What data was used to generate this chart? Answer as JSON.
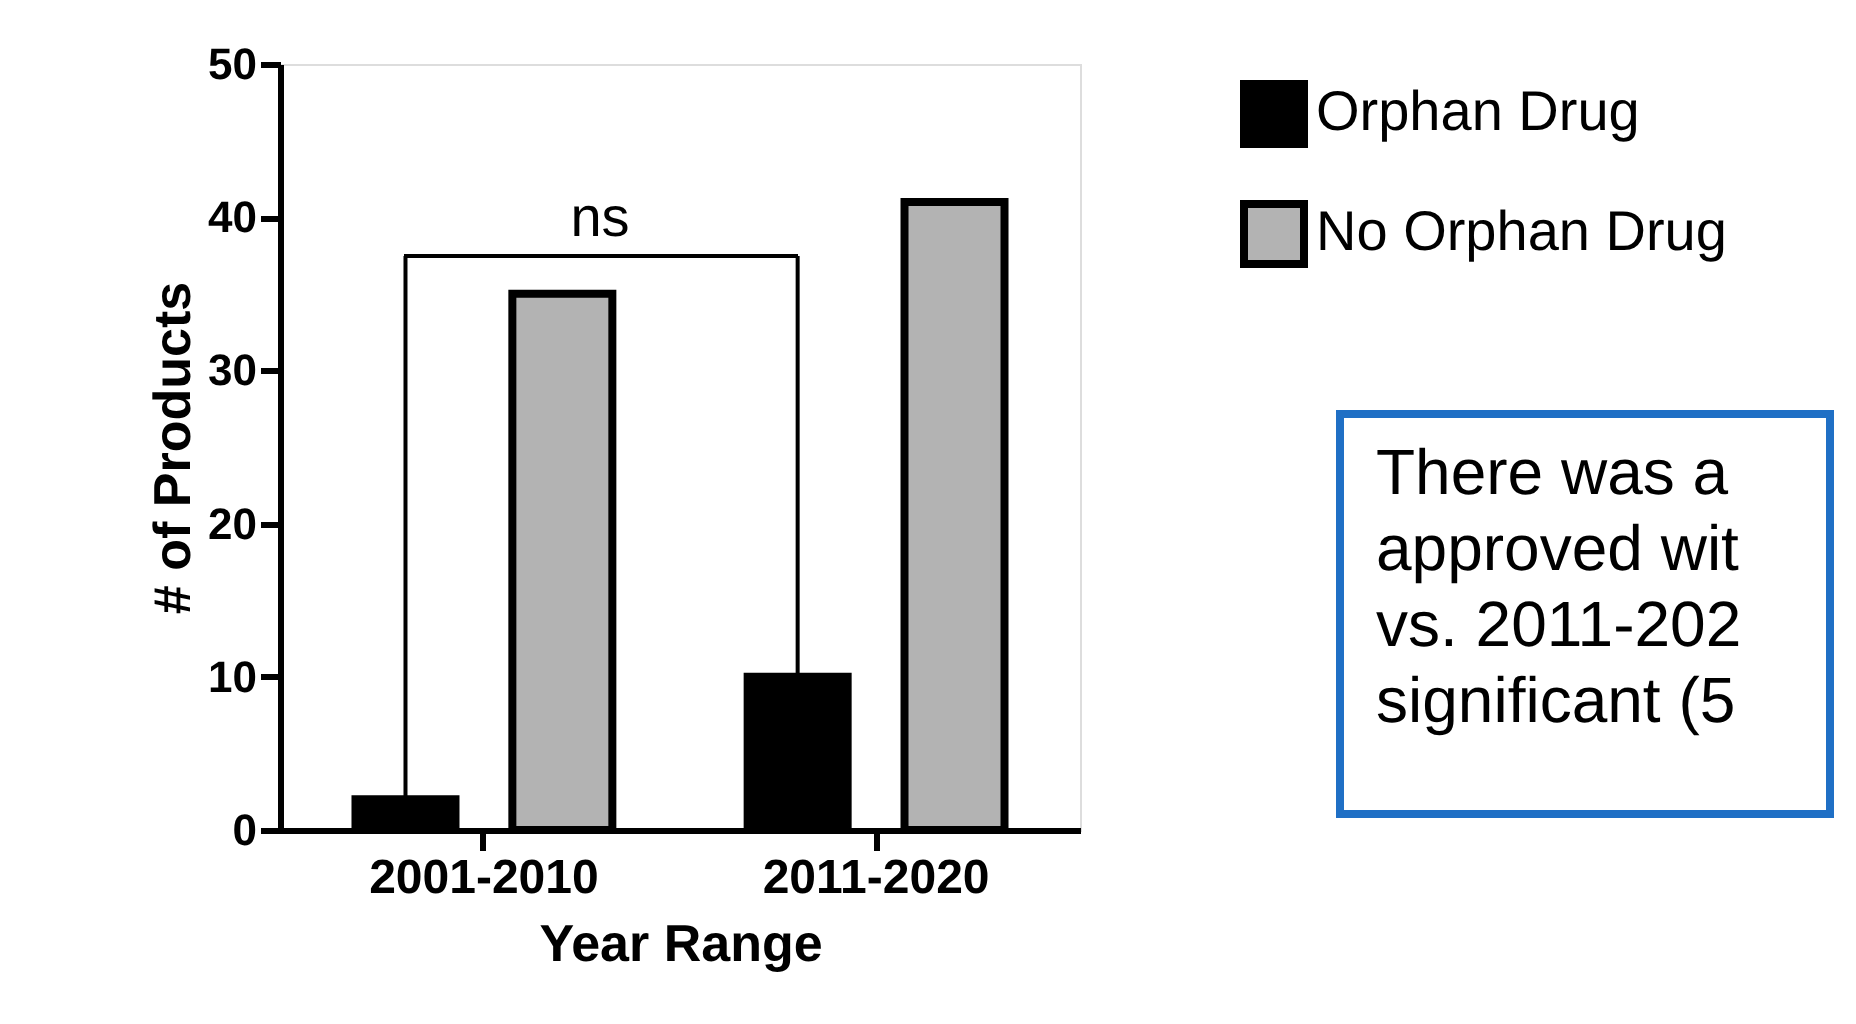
{
  "chart_data": {
    "type": "bar",
    "xlabel": "Year Range",
    "ylabel": "# of Products",
    "categories": [
      "2001-2010",
      "2011-2020"
    ],
    "series": [
      {
        "name": "Orphan Drug",
        "color": "#000000",
        "values": [
          2,
          10
        ]
      },
      {
        "name": "No Orphan Drug",
        "color": "#b3b3b3",
        "values": [
          35,
          41
        ]
      }
    ],
    "ylim": [
      0,
      50
    ],
    "yticks": [
      0,
      10,
      20,
      30,
      40,
      50
    ],
    "grid": false,
    "legend": "right",
    "annotations": [
      "ns",
      "There was a\napproved wit\nvs. 2011-202\nsignificant (5"
    ]
  }
}
